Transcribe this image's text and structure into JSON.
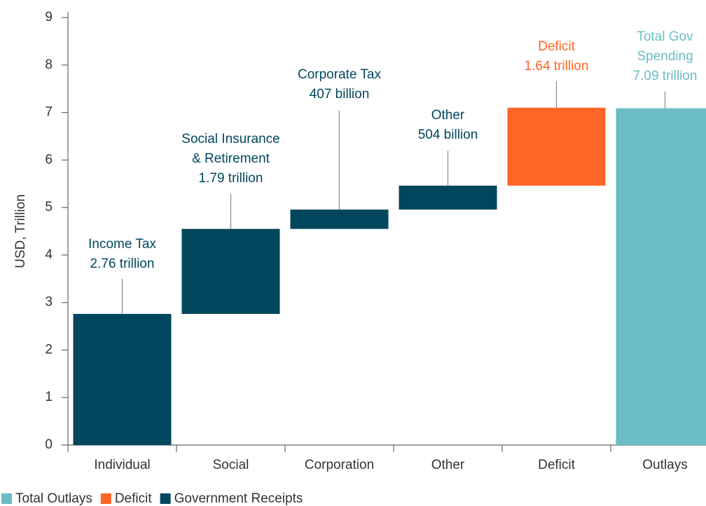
{
  "chart_data": {
    "type": "waterfall",
    "categories": [
      "Individual",
      "Social",
      "Corporation",
      "Other",
      "Deficit",
      "Outlays"
    ],
    "measure": [
      "relative",
      "relative",
      "relative",
      "relative",
      "relative",
      "total"
    ],
    "annotations": [
      [
        "Income Tax"
      ],
      [
        "Social Insurance",
        "& Retirement"
      ],
      [
        "Corporate Tax"
      ],
      [
        "Other"
      ],
      [
        "Deficit"
      ],
      [
        "Total Gov",
        "Spending"
      ]
    ],
    "series": [
      {
        "name": "Total Outlays",
        "color": "#6bbcc5",
        "values": [
          null,
          null,
          null,
          null,
          null,
          7.09
        ],
        "value_labels": [
          null,
          null,
          null,
          null,
          null,
          "7.09 trillion"
        ]
      },
      {
        "name": "Deficit",
        "color": "#ff6526",
        "values": [
          null,
          null,
          null,
          null,
          1.64,
          null
        ],
        "value_labels": [
          null,
          null,
          null,
          null,
          "1.64 trillion",
          null
        ]
      },
      {
        "name": "Government Receipts",
        "color": "#00475e",
        "values": [
          2.76,
          1.79,
          0.407,
          0.504,
          null,
          null
        ],
        "value_labels": [
          "2.76 trillion",
          "1.79 trillion",
          "407 billion",
          "504 billion",
          null,
          null
        ]
      }
    ],
    "ylabel": "USD, Trillion",
    "ylim": [
      0,
      9
    ],
    "yticks": [
      0,
      1,
      2,
      3,
      4,
      5,
      6,
      7,
      8,
      9
    ],
    "legend": "bottom-left"
  }
}
